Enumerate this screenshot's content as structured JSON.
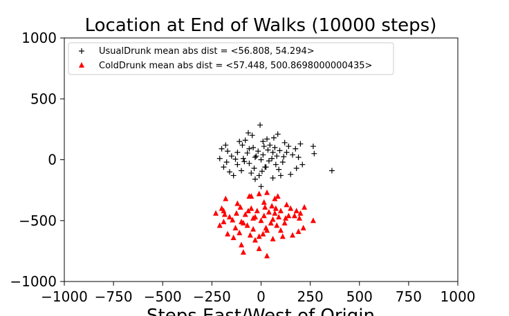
{
  "chart_data": {
    "type": "scatter",
    "title": "Location at End of Walks (10000 steps)",
    "xlabel": "Steps East/West of Origin",
    "ylabel": "",
    "xlim": [
      -1000,
      1000
    ],
    "ylim": [
      -1000,
      1000
    ],
    "xticks": [
      -1000,
      -750,
      -500,
      -250,
      0,
      250,
      500,
      750,
      1000
    ],
    "yticks": [
      -1000,
      -500,
      0,
      500,
      1000
    ],
    "xtick_labels": [
      "−1000",
      "−750",
      "−500",
      "−250",
      "0",
      "250",
      "500",
      "750",
      "1000"
    ],
    "ytick_labels": [
      "−1000",
      "−500",
      "0",
      "500",
      "1000"
    ],
    "grid": false,
    "legend_position": "top-left",
    "series": [
      {
        "name": "UsualDrunk mean abs dist = <56.808, 54.294>",
        "marker": "plus",
        "color": "#000000",
        "points": [
          [
            0,
            0
          ],
          [
            -30,
            20
          ],
          [
            40,
            -10
          ],
          [
            10,
            40
          ],
          [
            -60,
            -30
          ],
          [
            80,
            30
          ],
          [
            -90,
            10
          ],
          [
            25,
            -60
          ],
          [
            -15,
            70
          ],
          [
            60,
            60
          ],
          [
            -70,
            55
          ],
          [
            110,
            -20
          ],
          [
            -120,
            -40
          ],
          [
            5,
            -95
          ],
          [
            -40,
            100
          ],
          [
            130,
            60
          ],
          [
            -150,
            30
          ],
          [
            90,
            -80
          ],
          [
            -100,
            -90
          ],
          [
            45,
            120
          ],
          [
            -5,
            285
          ],
          [
            85,
            210
          ],
          [
            -65,
            220
          ],
          [
            140,
            110
          ],
          [
            -180,
            120
          ],
          [
            -210,
            10
          ],
          [
            -190,
            -60
          ],
          [
            175,
            90
          ],
          [
            210,
            -40
          ],
          [
            360,
            -90
          ],
          [
            265,
            110
          ],
          [
            270,
            50
          ],
          [
            -140,
            -130
          ],
          [
            60,
            -150
          ],
          [
            -30,
            -160
          ],
          [
            150,
            -120
          ],
          [
            0,
            -220
          ],
          [
            -80,
            160
          ],
          [
            30,
            170
          ],
          [
            -160,
            -100
          ],
          [
            180,
            -70
          ],
          [
            120,
            140
          ],
          [
            -110,
            150
          ],
          [
            200,
            130
          ],
          [
            -170,
            70
          ],
          [
            70,
            100
          ],
          [
            -50,
            -110
          ],
          [
            100,
            -130
          ],
          [
            20,
            -60
          ],
          [
            -25,
            30
          ],
          [
            55,
            10
          ],
          [
            -85,
            -15
          ],
          [
            115,
            25
          ],
          [
            -130,
            5
          ],
          [
            35,
            80
          ],
          [
            -60,
            90
          ],
          [
            95,
            75
          ],
          [
            -35,
            -70
          ],
          [
            15,
            110
          ],
          [
            -95,
            120
          ],
          [
            160,
            40
          ],
          [
            -175,
            -20
          ],
          [
            75,
            -40
          ],
          [
            -120,
            60
          ],
          [
            10,
            150
          ],
          [
            -200,
            90
          ],
          [
            190,
            20
          ],
          [
            -45,
            200
          ],
          [
            65,
            180
          ],
          [
            -10,
            -130
          ]
        ]
      },
      {
        "name": "ColdDrunk mean abs dist = <57.448, 500.8698000000435>",
        "marker": "triangle",
        "color": "#ff0000",
        "points": [
          [
            0,
            -500
          ],
          [
            -40,
            -480
          ],
          [
            50,
            -520
          ],
          [
            15,
            -460
          ],
          [
            -70,
            -540
          ],
          [
            90,
            -470
          ],
          [
            -100,
            -510
          ],
          [
            30,
            -580
          ],
          [
            -20,
            -420
          ],
          [
            70,
            -440
          ],
          [
            -80,
            -450
          ],
          [
            120,
            -520
          ],
          [
            -130,
            -560
          ],
          [
            10,
            -610
          ],
          [
            -50,
            -400
          ],
          [
            140,
            -460
          ],
          [
            -160,
            -470
          ],
          [
            100,
            -580
          ],
          [
            -110,
            -600
          ],
          [
            55,
            -380
          ],
          [
            -10,
            -280
          ],
          [
            85,
            -300
          ],
          [
            -60,
            -300
          ],
          [
            150,
            -400
          ],
          [
            -190,
            -420
          ],
          [
            -230,
            -440
          ],
          [
            -210,
            -540
          ],
          [
            180,
            -420
          ],
          [
            215,
            -560
          ],
          [
            265,
            -500
          ],
          [
            220,
            -390
          ],
          [
            -180,
            -320
          ],
          [
            -140,
            -640
          ],
          [
            60,
            -650
          ],
          [
            -30,
            -660
          ],
          [
            160,
            -620
          ],
          [
            30,
            -790
          ],
          [
            -90,
            -760
          ],
          [
            -10,
            -730
          ],
          [
            -170,
            -610
          ],
          [
            190,
            -590
          ],
          [
            130,
            -370
          ],
          [
            -120,
            -360
          ],
          [
            200,
            -440
          ],
          [
            -185,
            -450
          ],
          [
            75,
            -400
          ],
          [
            -55,
            -620
          ],
          [
            110,
            -630
          ],
          [
            25,
            -560
          ],
          [
            -30,
            -470
          ],
          [
            60,
            -490
          ],
          [
            -90,
            -520
          ],
          [
            125,
            -480
          ],
          [
            -145,
            -495
          ],
          [
            40,
            -430
          ],
          [
            -65,
            -420
          ],
          [
            100,
            -420
          ],
          [
            -40,
            -570
          ],
          [
            20,
            -390
          ],
          [
            -105,
            -390
          ],
          [
            170,
            -460
          ],
          [
            -190,
            -510
          ],
          [
            80,
            -540
          ],
          [
            -125,
            -440
          ],
          [
            15,
            -350
          ],
          [
            -200,
            -400
          ],
          [
            195,
            -480
          ],
          [
            -50,
            -300
          ],
          [
            70,
            -320
          ],
          [
            -10,
            -630
          ],
          [
            30,
            -270
          ],
          [
            -100,
            -700
          ]
        ]
      }
    ]
  }
}
